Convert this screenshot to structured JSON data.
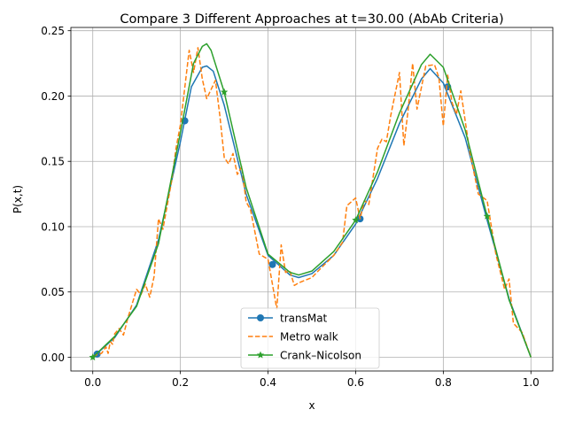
{
  "chart_data": {
    "type": "line",
    "title": "Compare 3 Different Approaches at t=30.00 (AbAb Criteria)",
    "xlabel": "x",
    "ylabel": "P(x,t)",
    "xlim": [
      -0.05,
      1.05
    ],
    "ylim": [
      -0.0105,
      0.2525
    ],
    "xticks": [
      0.0,
      0.2,
      0.4,
      0.6,
      0.8,
      1.0
    ],
    "xtick_labels": [
      "0.0",
      "0.2",
      "0.4",
      "0.6",
      "0.8",
      "1.0"
    ],
    "yticks": [
      0.0,
      0.05,
      0.1,
      0.15,
      0.2,
      0.25
    ],
    "ytick_labels": [
      "0.00",
      "0.05",
      "0.10",
      "0.15",
      "0.20",
      "0.25"
    ],
    "grid": true,
    "legend_position": "lower-center",
    "series": [
      {
        "name": "transMat",
        "color": "#1f77b4",
        "linestyle": "solid",
        "marker": "circle",
        "x": [
          0.0,
          0.05,
          0.1,
          0.15,
          0.2,
          0.225,
          0.25,
          0.26,
          0.275,
          0.3,
          0.35,
          0.4,
          0.45,
          0.47,
          0.5,
          0.55,
          0.6,
          0.65,
          0.7,
          0.75,
          0.77,
          0.8,
          0.85,
          0.9,
          0.95,
          1.0
        ],
        "y": [
          0.0,
          0.015,
          0.04,
          0.09,
          0.165,
          0.207,
          0.222,
          0.223,
          0.219,
          0.193,
          0.125,
          0.078,
          0.063,
          0.061,
          0.064,
          0.078,
          0.102,
          0.137,
          0.179,
          0.213,
          0.221,
          0.21,
          0.168,
          0.105,
          0.045,
          0.0
        ],
        "marker_x": [
          0.01,
          0.21,
          0.41,
          0.61,
          0.81
        ],
        "marker_y": [
          0.0025,
          0.181,
          0.071,
          0.106,
          0.207
        ]
      },
      {
        "name": "Metro walk",
        "color": "#ff7f0e",
        "linestyle": "dashed",
        "marker": "none",
        "x": [
          0.0,
          0.02,
          0.03,
          0.035,
          0.04,
          0.045,
          0.05,
          0.06,
          0.07,
          0.08,
          0.1,
          0.11,
          0.12,
          0.13,
          0.14,
          0.15,
          0.16,
          0.18,
          0.19,
          0.2,
          0.22,
          0.23,
          0.24,
          0.25,
          0.26,
          0.27,
          0.28,
          0.29,
          0.3,
          0.31,
          0.32,
          0.33,
          0.34,
          0.35,
          0.36,
          0.38,
          0.4,
          0.42,
          0.43,
          0.44,
          0.45,
          0.46,
          0.47,
          0.5,
          0.52,
          0.55,
          0.57,
          0.58,
          0.6,
          0.61,
          0.62,
          0.63,
          0.65,
          0.66,
          0.67,
          0.68,
          0.7,
          0.71,
          0.72,
          0.73,
          0.74,
          0.76,
          0.78,
          0.79,
          0.8,
          0.81,
          0.82,
          0.83,
          0.84,
          0.86,
          0.88,
          0.9,
          0.92,
          0.94,
          0.95,
          0.96,
          0.98,
          1.0
        ],
        "y": [
          0.001,
          0.003,
          0.008,
          0.003,
          0.012,
          0.01,
          0.018,
          0.022,
          0.017,
          0.03,
          0.052,
          0.048,
          0.056,
          0.046,
          0.062,
          0.106,
          0.098,
          0.135,
          0.16,
          0.178,
          0.235,
          0.218,
          0.237,
          0.213,
          0.198,
          0.205,
          0.212,
          0.185,
          0.153,
          0.148,
          0.156,
          0.14,
          0.146,
          0.119,
          0.113,
          0.079,
          0.075,
          0.037,
          0.086,
          0.065,
          0.066,
          0.055,
          0.057,
          0.061,
          0.068,
          0.078,
          0.088,
          0.116,
          0.122,
          0.106,
          0.12,
          0.117,
          0.16,
          0.167,
          0.165,
          0.185,
          0.218,
          0.162,
          0.19,
          0.225,
          0.19,
          0.223,
          0.224,
          0.214,
          0.177,
          0.216,
          0.195,
          0.186,
          0.204,
          0.158,
          0.125,
          0.12,
          0.079,
          0.052,
          0.06,
          0.026,
          0.019,
          0.0
        ]
      },
      {
        "name": "Crank–Nicolson",
        "color": "#2ca02c",
        "linestyle": "solid",
        "marker": "star",
        "x": [
          0.0,
          0.05,
          0.1,
          0.15,
          0.2,
          0.23,
          0.25,
          0.26,
          0.27,
          0.3,
          0.35,
          0.4,
          0.45,
          0.47,
          0.5,
          0.55,
          0.6,
          0.65,
          0.7,
          0.75,
          0.77,
          0.8,
          0.85,
          0.9,
          0.95,
          1.0
        ],
        "y": [
          0.0,
          0.016,
          0.039,
          0.087,
          0.172,
          0.225,
          0.238,
          0.24,
          0.235,
          0.203,
          0.13,
          0.079,
          0.065,
          0.063,
          0.066,
          0.081,
          0.105,
          0.142,
          0.187,
          0.224,
          0.232,
          0.222,
          0.174,
          0.108,
          0.044,
          0.0
        ],
        "marker_x": [
          0.0,
          0.3,
          0.6,
          0.9
        ],
        "marker_y": [
          0.0,
          0.203,
          0.105,
          0.108
        ]
      }
    ]
  }
}
